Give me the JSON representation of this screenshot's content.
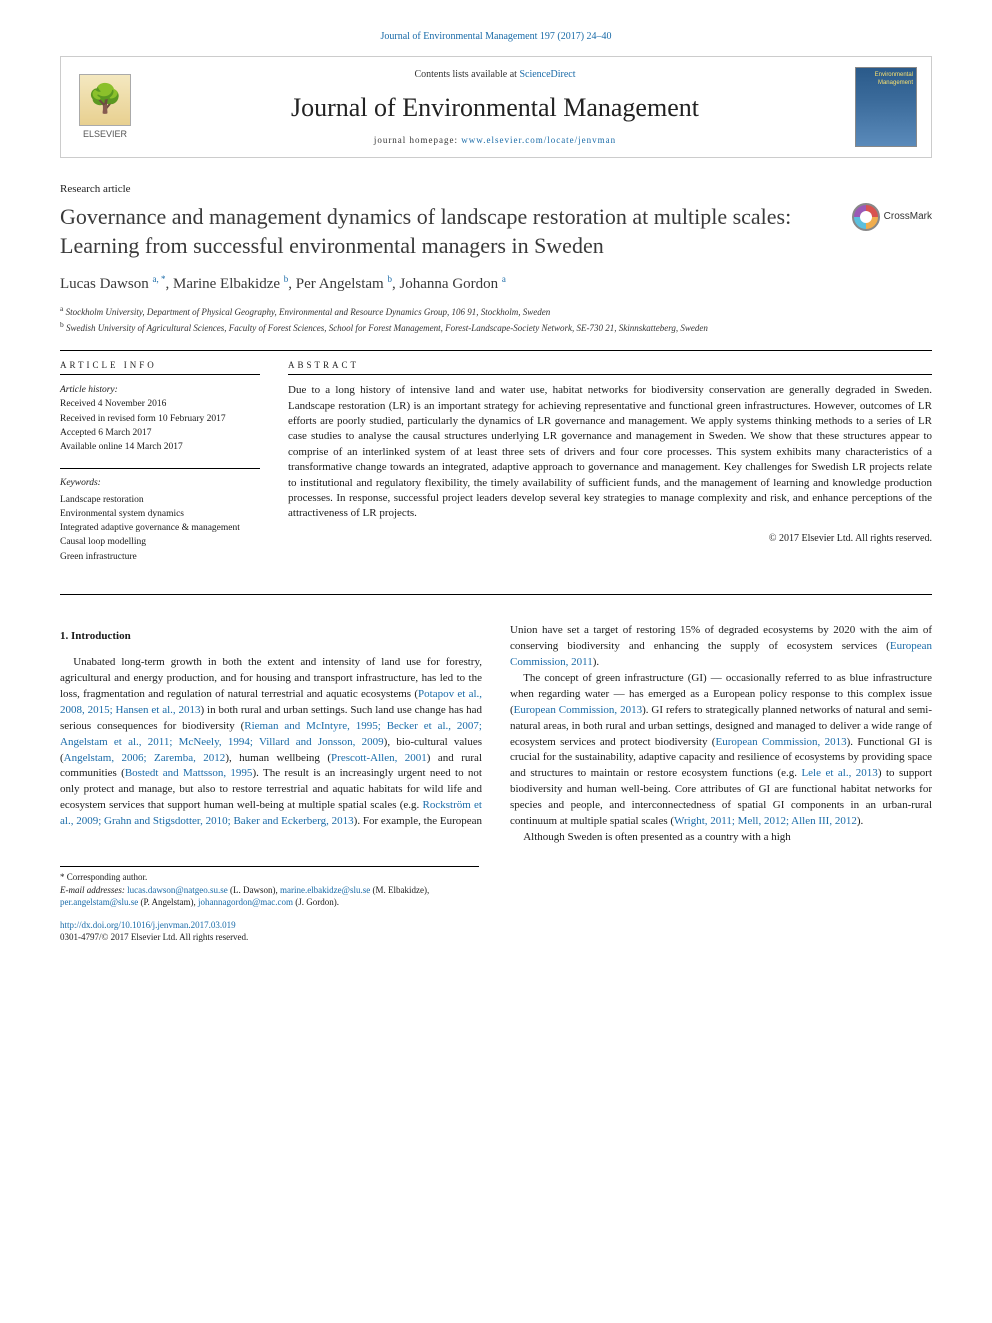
{
  "colors": {
    "link": "#1a6ba8",
    "text": "#1a1a1a",
    "title_gray": "#3a3a3a",
    "rule": "#000000",
    "background": "#ffffff"
  },
  "typography": {
    "body_font": "Georgia, 'Times New Roman', serif",
    "title_fontsize_pt": 22,
    "journal_fontsize_pt": 26,
    "body_fontsize_pt": 11,
    "small_fontsize_pt": 9
  },
  "citation": "Journal of Environmental Management 197 (2017) 24–40",
  "masthead": {
    "contents_prefix": "Contents lists available at ",
    "contents_link": "ScienceDirect",
    "journal": "Journal of Environmental Management",
    "homepage_prefix": "journal homepage: ",
    "homepage_url": "www.elsevier.com/locate/jenvman",
    "publisher": "ELSEVIER",
    "cover_label": "Environmental Management"
  },
  "article_type": "Research article",
  "title": "Governance and management dynamics of landscape restoration at multiple scales: Learning from successful environmental managers in Sweden",
  "crossmark": "CrossMark",
  "authors_html": "Lucas Dawson <sup>a, *</sup>, Marine Elbakidze <sup>b</sup>, Per Angelstam <sup>b</sup>, Johanna Gordon <sup>a</sup>",
  "affiliations": {
    "a": "Stockholm University, Department of Physical Geography, Environmental and Resource Dynamics Group, 106 91, Stockholm, Sweden",
    "b": "Swedish University of Agricultural Sciences, Faculty of Forest Sciences, School for Forest Management, Forest-Landscape-Society Network, SE-730 21, Skinnskatteberg, Sweden"
  },
  "info": {
    "heading": "ARTICLE INFO",
    "history_label": "Article history:",
    "received": "Received 4 November 2016",
    "revised": "Received in revised form 10 February 2017",
    "accepted": "Accepted 6 March 2017",
    "online": "Available online 14 March 2017",
    "keywords_label": "Keywords:",
    "keywords": [
      "Landscape restoration",
      "Environmental system dynamics",
      "Integrated adaptive governance & management",
      "Causal loop modelling",
      "Green infrastructure"
    ]
  },
  "abstract": {
    "heading": "ABSTRACT",
    "text": "Due to a long history of intensive land and water use, habitat networks for biodiversity conservation are generally degraded in Sweden. Landscape restoration (LR) is an important strategy for achieving representative and functional green infrastructures. However, outcomes of LR efforts are poorly studied, particularly the dynamics of LR governance and management. We apply systems thinking methods to a series of LR case studies to analyse the causal structures underlying LR governance and management in Sweden. We show that these structures appear to comprise of an interlinked system of at least three sets of drivers and four core processes. This system exhibits many characteristics of a transformative change towards an integrated, adaptive approach to governance and management. Key challenges for Swedish LR projects relate to institutional and regulatory flexibility, the timely availability of sufficient funds, and the management of learning and knowledge production processes. In response, successful project leaders develop several key strategies to manage complexity and risk, and enhance perceptions of the attractiveness of LR projects.",
    "copyright": "© 2017 Elsevier Ltd. All rights reserved."
  },
  "intro": {
    "heading": "1. Introduction",
    "p1_pre": "Unabated long-term growth in both the extent and intensity of land use for forestry, agricultural and energy production, and for housing and transport infrastructure, has led to the loss, fragmentation and regulation of natural terrestrial and aquatic ecosystems (",
    "p1_ref1": "Potapov et al., 2008, 2015; Hansen et al., 2013",
    "p1_mid1": ") in both rural and urban settings. Such land use change has had serious consequences for biodiversity (",
    "p1_ref2": "Rieman and McIntyre, 1995; Becker et al., 2007; Angelstam et al., 2011; McNeely, 1994; Villard and Jonsson, 2009",
    "p1_mid2": "), bio-cultural values (",
    "p1_ref3": "Angelstam, 2006; Zaremba, 2012",
    "p1_mid3": "), human wellbeing (",
    "p1_ref4": "Prescott-Allen, 2001",
    "p1_mid4": ") and rural communities (",
    "p1_ref5": "Bostedt and Mattsson, 1995",
    "p1_mid5": "). The result is an increasingly urgent need to not only protect and manage, but also to restore terrestrial and aquatic habitats for wild life and ecosystem services that support human well-being at multiple spatial scales (e.g. ",
    "p1_ref6": "Rockström et al., 2009; Grahn and Stigsdotter, 2010; Baker and Eckerberg, 2013",
    "p1_post": "). For example, the European Union have set a target of restoring 15% of degraded ecosystems by 2020 with the aim of conserving biodiversity and enhancing the supply of ecosystem services (",
    "p1_ref7": "European Commission, 2011",
    "p1_end": ").",
    "p2_pre": "The concept of green infrastructure (GI) — occasionally referred to as blue infrastructure when regarding water — has emerged as a European policy response to this complex issue (",
    "p2_ref1": "European Commission, 2013",
    "p2_mid1": "). GI refers to strategically planned networks of natural and semi-natural areas, in both rural and urban settings, designed and managed to deliver a wide range of ecosystem services and protect biodiversity (",
    "p2_ref2": "European Commission, 2013",
    "p2_mid2": "). Functional GI is crucial for the sustainability, adaptive capacity and resilience of ecosystems by providing space and structures to maintain or restore ecosystem functions (e.g. ",
    "p2_ref3": "Lele et al., 2013",
    "p2_mid3": ") to support biodiversity and human well-being. Core attributes of GI are functional habitat networks for species and people, and interconnectedness of spatial GI components in an urban-rural continuum at multiple spatial scales (",
    "p2_ref4": "Wright, 2011; Mell, 2012; Allen III, 2012",
    "p2_end": ").",
    "p3": "Although Sweden is often presented as a country with a high"
  },
  "footnotes": {
    "corr": "* Corresponding author.",
    "email_label": "E-mail addresses:",
    "e1": "lucas.dawson@natgeo.su.se",
    "n1": "(L. Dawson),",
    "e2": "marine.elbakidze@slu.se",
    "n2": "(M. Elbakidze),",
    "e3": "per.angelstam@slu.se",
    "n3": "(P. Angelstam),",
    "e4": "johannagordon@mac.com",
    "n4": "(J. Gordon)."
  },
  "doi": {
    "url": "http://dx.doi.org/10.1016/j.jenvman.2017.03.019",
    "issn_line": "0301-4797/© 2017 Elsevier Ltd. All rights reserved."
  }
}
